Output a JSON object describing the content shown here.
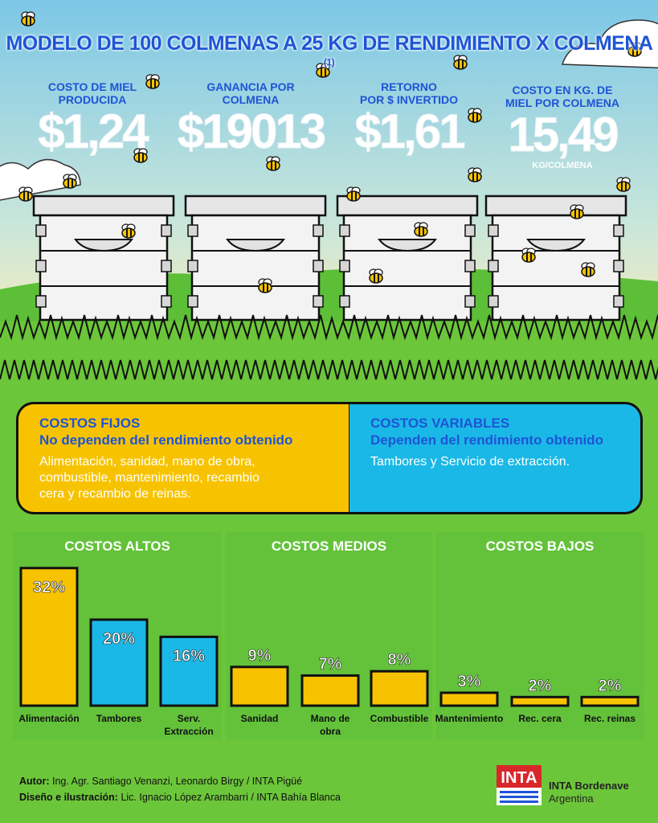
{
  "title": {
    "text": "MODELO DE 100 COLMENAS A 25 KG DE RENDIMIENTO X COLMENA",
    "note": "(1)"
  },
  "stats": [
    {
      "label_1": "COSTO DE MIEL",
      "label_2": "PRODUCIDA",
      "value": "$1,24",
      "unit": ""
    },
    {
      "label_1": "GANANCIA POR",
      "label_2": "COLMENA",
      "value": "$19013",
      "unit": ""
    },
    {
      "label_1": "RETORNO",
      "label_2": "POR $ INVERTIDO",
      "value": "$1,61",
      "unit": ""
    },
    {
      "label_1": "COSTO EN KG. DE",
      "label_2": "MIEL POR COLMENA",
      "value": "15,49",
      "unit": "KG/COLMENA"
    }
  ],
  "fixed_costs": {
    "heading": "COSTOS FIJOS",
    "subheading": "No dependen del rendimiento obtenido",
    "line_1": "Alimentación, sanidad, mano de obra,",
    "line_2": "combustible, mantenimiento, recambio",
    "line_3": "cera y recambio de reinas."
  },
  "variable_costs": {
    "heading": "COSTOS VARIABLES",
    "subheading": "Dependen del rendimiento obtenido",
    "line_1": "Tambores y Servicio de extracción."
  },
  "colors": {
    "sky": "#8fd0e8",
    "grass": "#6cc63a",
    "yellow": "#f7c300",
    "blue": "#1ab8e6",
    "title_blue": "#1e54d6"
  },
  "chart_data": {
    "type": "bar",
    "unit": "%",
    "groups": [
      {
        "name": "COSTOS ALTOS",
        "categories": [
          "Alimentación",
          "Tambores",
          "Serv. Extracción"
        ],
        "values": [
          32,
          20,
          16
        ],
        "labels": [
          "32%",
          "20%",
          "16%"
        ],
        "colors": [
          "#f7c300",
          "#1ab8e6",
          "#1ab8e6"
        ]
      },
      {
        "name": "COSTOS MEDIOS",
        "categories": [
          "Sanidad",
          "Mano de obra",
          "Combustible"
        ],
        "values": [
          9,
          7,
          8
        ],
        "labels": [
          "9%",
          "7%",
          "8%"
        ],
        "colors": [
          "#f7c300",
          "#f7c300",
          "#f7c300"
        ]
      },
      {
        "name": "COSTOS BAJOS",
        "categories": [
          "Mantenimiento",
          "Rec. cera",
          "Rec. reinas"
        ],
        "values": [
          3,
          2,
          2
        ],
        "labels": [
          "3%",
          "2%",
          "2%"
        ],
        "colors": [
          "#f7c300",
          "#f7c300",
          "#f7c300"
        ]
      }
    ]
  },
  "credits": {
    "author_label": "Autor:",
    "author": "Ing. Agr. Santiago Venanzi, Leonardo Birgy / INTA Pigüé",
    "design_label": "Diseño e ilustración:",
    "design": "Lic. Ignacio López Arambarri / INTA Bahía Blanca"
  },
  "logo": {
    "mark": "INTA",
    "org": "INTA Bordenave",
    "country": "Argentina"
  }
}
